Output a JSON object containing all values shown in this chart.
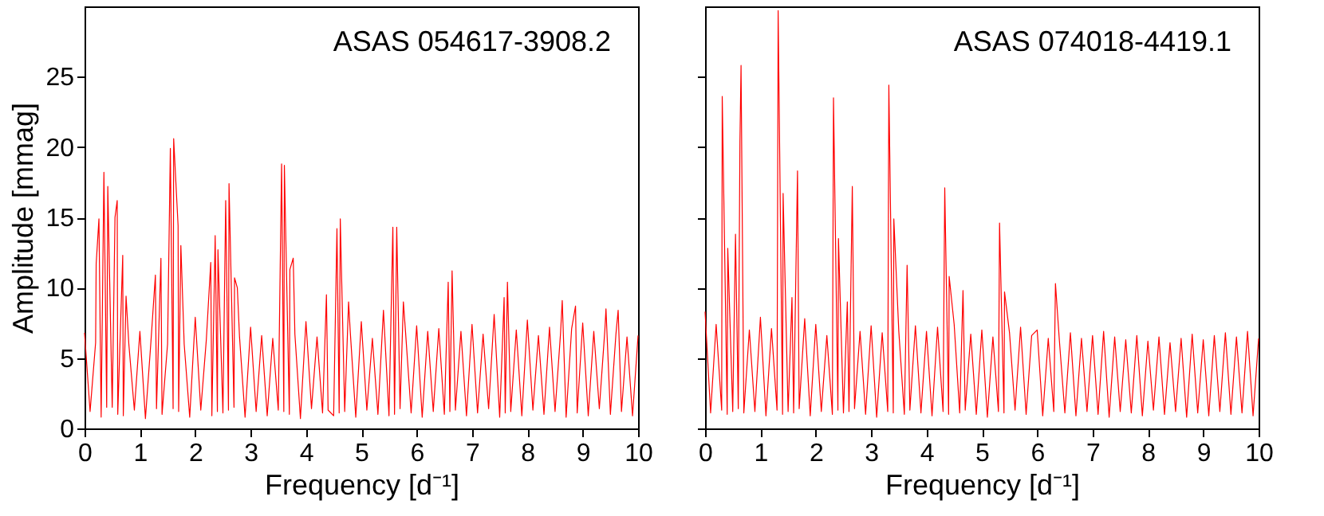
{
  "chart_data": [
    {
      "type": "line",
      "xlabel": "Frequency [d⁻¹]",
      "ylabel": "Amplitude [mmag]",
      "annotations": [
        "ASAS 054617-3908.2"
      ],
      "xlim": [
        0,
        10
      ],
      "xticks": [
        0,
        1,
        2,
        3,
        4,
        5,
        6,
        7,
        8,
        9,
        10
      ],
      "ylim": [
        0,
        30
      ],
      "yticks": [
        0,
        5,
        10,
        15,
        20,
        25
      ],
      "grid": false,
      "x": [
        0,
        0.1,
        0.2,
        0.21,
        0.26,
        0.3,
        0.35,
        0.4,
        0.42,
        0.5,
        0.55,
        0.59,
        0.6,
        0.69,
        0.7,
        0.75,
        0.8,
        0.9,
        1.0,
        1.1,
        1.2,
        1.28,
        1.3,
        1.38,
        1.4,
        1.5,
        1.55,
        1.6,
        1.61,
        1.69,
        1.7,
        1.74,
        1.8,
        1.9,
        2.0,
        2.1,
        2.2,
        2.28,
        2.3,
        2.36,
        2.4,
        2.41,
        2.5,
        2.55,
        2.6,
        2.61,
        2.7,
        2.71,
        2.76,
        2.8,
        2.9,
        3.0,
        3.1,
        3.2,
        3.3,
        3.4,
        3.5,
        3.56,
        3.6,
        3.61,
        3.7,
        3.71,
        3.77,
        3.8,
        3.9,
        4.0,
        4.1,
        4.2,
        4.3,
        4.37,
        4.4,
        4.5,
        4.56,
        4.6,
        4.62,
        4.7,
        4.77,
        4.8,
        4.9,
        5.0,
        5.1,
        5.2,
        5.3,
        5.4,
        5.5,
        5.57,
        5.6,
        5.64,
        5.7,
        5.76,
        5.8,
        5.9,
        6.0,
        6.1,
        6.2,
        6.3,
        6.4,
        6.5,
        6.57,
        6.6,
        6.64,
        6.7,
        6.8,
        6.9,
        7.0,
        7.1,
        7.2,
        7.3,
        7.4,
        7.5,
        7.58,
        7.6,
        7.64,
        7.7,
        7.8,
        7.9,
        8.0,
        8.1,
        8.2,
        8.3,
        8.4,
        8.5,
        8.6,
        8.63,
        8.7,
        8.8,
        8.87,
        8.9,
        9.0,
        9.1,
        9.2,
        9.3,
        9.4,
        9.42,
        9.5,
        9.6,
        9.64,
        9.7,
        9.8,
        9.9,
        10.0
      ],
      "series": [
        {
          "color": "#ff0000",
          "values": [
            6.8,
            1.2,
            6.1,
            11.7,
            14.9,
            0.8,
            18.2,
            1.5,
            17.2,
            1.5,
            15.0,
            16.2,
            1.0,
            12.3,
            0.9,
            9.4,
            6.0,
            1.3,
            6.9,
            0.7,
            6.2,
            10.9,
            1.4,
            12.1,
            1.0,
            6.0,
            19.9,
            1.4,
            20.6,
            14.4,
            1.2,
            13.0,
            6.0,
            0.8,
            7.9,
            1.3,
            6.3,
            11.8,
            0.9,
            13.7,
            1.2,
            12.7,
            1.1,
            16.2,
            1.3,
            17.4,
            1.5,
            10.7,
            10.0,
            6.5,
            0.8,
            7.2,
            1.2,
            6.6,
            0.9,
            6.4,
            1.3,
            18.8,
            1.2,
            18.7,
            1.0,
            11.3,
            12.1,
            6.7,
            0.7,
            7.6,
            1.4,
            6.5,
            1.1,
            9.5,
            1.3,
            0.9,
            14.2,
            1.1,
            14.9,
            1.2,
            9.0,
            6.9,
            0.8,
            7.6,
            1.3,
            6.4,
            1.0,
            8.4,
            0.9,
            14.3,
            1.0,
            14.3,
            1.4,
            9.0,
            6.8,
            1.1,
            7.3,
            0.8,
            6.9,
            1.2,
            7.1,
            1.0,
            10.4,
            1.2,
            11.2,
            1.3,
            6.9,
            0.9,
            7.4,
            1.1,
            6.7,
            1.4,
            8.1,
            0.8,
            9.3,
            1.1,
            10.4,
            1.2,
            7.0,
            0.9,
            7.7,
            1.3,
            6.6,
            1.0,
            7.2,
            1.2,
            6.8,
            9.1,
            0.8,
            7.1,
            8.7,
            1.1,
            7.5,
            0.9,
            6.9,
            1.4,
            7.0,
            8.5,
            1.0,
            6.7,
            8.4,
            1.2,
            6.5,
            0.9,
            6.6
          ]
        }
      ]
    },
    {
      "type": "line",
      "xlabel": "Frequency [d⁻¹]",
      "annotations": [
        "ASAS 074018-4419.1"
      ],
      "xlim": [
        0,
        10
      ],
      "xticks": [
        0,
        1,
        2,
        3,
        4,
        5,
        6,
        7,
        8,
        9,
        10
      ],
      "ylim": [
        0,
        30
      ],
      "yticks": [
        0,
        5,
        10,
        15,
        20,
        25
      ],
      "tick_labels": "x",
      "grid": false,
      "x": [
        0,
        0.1,
        0.2,
        0.3,
        0.31,
        0.4,
        0.41,
        0.5,
        0.55,
        0.6,
        0.63,
        0.65,
        0.7,
        0.8,
        0.9,
        1.0,
        1.1,
        1.2,
        1.3,
        1.32,
        1.4,
        1.41,
        1.5,
        1.57,
        1.6,
        1.67,
        1.7,
        1.8,
        1.9,
        2.0,
        2.1,
        2.2,
        2.3,
        2.32,
        2.4,
        2.41,
        2.5,
        2.57,
        2.6,
        2.66,
        2.7,
        2.8,
        2.9,
        3.0,
        3.1,
        3.2,
        3.3,
        3.32,
        3.4,
        3.41,
        3.5,
        3.6,
        3.65,
        3.7,
        3.8,
        3.9,
        4.0,
        4.1,
        4.2,
        4.3,
        4.33,
        4.4,
        4.41,
        4.5,
        4.6,
        4.66,
        4.7,
        4.8,
        4.9,
        5.0,
        5.1,
        5.2,
        5.3,
        5.32,
        5.4,
        5.41,
        5.5,
        5.6,
        5.7,
        5.8,
        5.9,
        6.0,
        6.1,
        6.2,
        6.3,
        6.33,
        6.4,
        6.5,
        6.6,
        6.7,
        6.8,
        6.9,
        7.0,
        7.1,
        7.2,
        7.3,
        7.4,
        7.5,
        7.6,
        7.7,
        7.8,
        7.9,
        8.0,
        8.1,
        8.2,
        8.3,
        8.4,
        8.5,
        8.6,
        8.7,
        8.8,
        8.9,
        9.0,
        9.1,
        9.2,
        9.3,
        9.4,
        9.5,
        9.6,
        9.7,
        9.8,
        9.9,
        10.0
      ],
      "series": [
        {
          "color": "#ff0000",
          "values": [
            8.3,
            1.1,
            7.4,
            1.3,
            23.6,
            1.0,
            12.8,
            1.2,
            13.8,
            1.4,
            20.4,
            25.8,
            1.1,
            7.0,
            1.2,
            7.9,
            0.9,
            7.1,
            1.3,
            29.7,
            1.0,
            16.7,
            1.2,
            9.3,
            1.1,
            18.3,
            1.4,
            7.8,
            0.9,
            7.4,
            1.2,
            6.6,
            1.0,
            23.5,
            1.3,
            13.5,
            1.1,
            9.0,
            1.2,
            17.2,
            1.4,
            6.9,
            1.0,
            7.3,
            0.8,
            6.8,
            1.2,
            24.4,
            1.1,
            14.9,
            6.9,
            1.0,
            11.6,
            1.3,
            7.3,
            1.1,
            6.9,
            0.9,
            7.2,
            1.2,
            17.1,
            1.0,
            10.8,
            7.4,
            1.1,
            9.8,
            1.3,
            6.7,
            1.0,
            7.0,
            0.8,
            6.5,
            1.2,
            14.6,
            1.1,
            9.7,
            6.8,
            1.3,
            7.2,
            1.0,
            6.6,
            7.0,
            0.9,
            6.4,
            1.2,
            10.3,
            6.3,
            1.1,
            6.8,
            0.9,
            6.4,
            1.2,
            6.6,
            1.0,
            6.9,
            0.8,
            6.5,
            1.2,
            6.3,
            1.1,
            6.6,
            0.9,
            6.2,
            1.3,
            6.5,
            1.0,
            6.1,
            1.2,
            6.4,
            0.8,
            6.7,
            1.1,
            6.3,
            0.9,
            6.6,
            1.2,
            6.8,
            1.0,
            6.5,
            1.1,
            6.9,
            0.9,
            6.4
          ]
        }
      ]
    }
  ]
}
